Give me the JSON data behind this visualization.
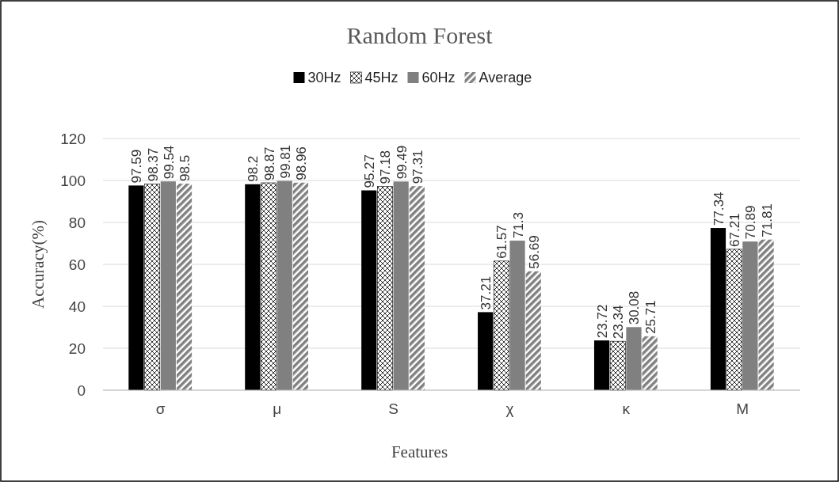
{
  "chart_data": {
    "type": "bar",
    "title": "Random Forest",
    "xlabel": "Features",
    "ylabel": "Accuracy(%)",
    "categories": [
      "σ",
      "μ",
      "S",
      "χ",
      "κ",
      "M"
    ],
    "series": [
      {
        "name": "30Hz",
        "color": "#000000",
        "values": [
          97.59,
          98.2,
          95.27,
          37.21,
          23.72,
          77.34
        ]
      },
      {
        "name": "45Hz",
        "color": "#000000",
        "values": [
          98.37,
          98.87,
          97.18,
          61.57,
          23.34,
          67.21
        ]
      },
      {
        "name": "60Hz",
        "color": "#808080",
        "values": [
          99.54,
          99.81,
          99.49,
          71.3,
          30.08,
          70.89
        ]
      },
      {
        "name": "Average",
        "color": "#808080",
        "values": [
          98.5,
          98.96,
          97.31,
          56.69,
          25.71,
          71.81
        ]
      }
    ],
    "ylim": [
      0,
      120
    ],
    "yticks": [
      0,
      20,
      40,
      60,
      80,
      100,
      120
    ],
    "grid": "y",
    "legend": "top",
    "data_labels": true
  }
}
